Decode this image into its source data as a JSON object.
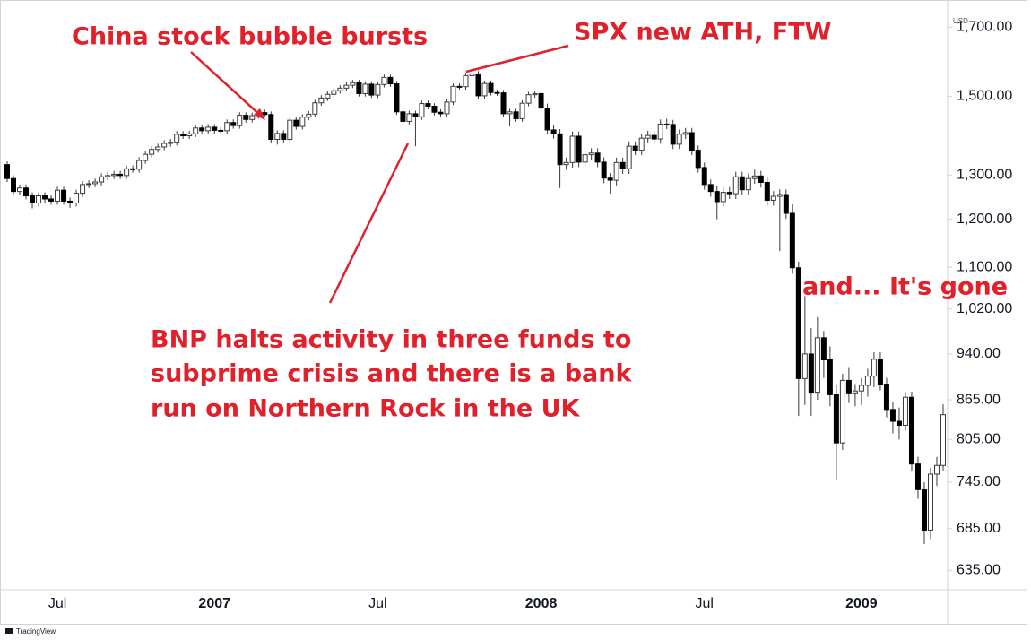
{
  "chart_data": {
    "type": "candlestick",
    "currency": "USD",
    "watermark": "TradingView",
    "log_scale": true,
    "up_color": "#ffffff",
    "down_color": "#000000",
    "outline_color": "#3a3a3a",
    "annotations": [
      "China stock bubble bursts",
      "SPX new ATH, FTW",
      [
        "BNP halts activity in three funds to",
        "subprime crisis and there is a bank",
        "run on Northern Rock in the UK"
      ],
      "and... It's gone"
    ],
    "annotation_color": "#e0202a",
    "categories": [
      null,
      null,
      null,
      null,
      null,
      null,
      null,
      null,
      "Jul",
      null,
      null,
      null,
      null,
      null,
      null,
      null,
      null,
      null,
      null,
      null,
      null,
      null,
      null,
      null,
      null,
      null,
      null,
      null,
      null,
      null,
      null,
      null,
      null,
      "2007",
      null,
      null,
      null,
      null,
      null,
      null,
      null,
      null,
      null,
      null,
      null,
      null,
      null,
      null,
      null,
      null,
      null,
      null,
      null,
      null,
      null,
      null,
      null,
      null,
      null,
      "Jul",
      null,
      null,
      null,
      null,
      null,
      null,
      null,
      null,
      null,
      null,
      null,
      null,
      null,
      null,
      null,
      null,
      null,
      null,
      null,
      null,
      null,
      null,
      null,
      null,
      null,
      "2008",
      null,
      null,
      null,
      null,
      null,
      null,
      null,
      null,
      null,
      null,
      null,
      null,
      null,
      null,
      null,
      null,
      null,
      null,
      null,
      null,
      null,
      null,
      null,
      null,
      null,
      "Jul",
      null,
      null,
      null,
      null,
      null,
      null,
      null,
      null,
      null,
      null,
      null,
      null,
      null,
      null,
      null,
      null,
      null,
      null,
      null,
      null,
      null,
      null,
      null,
      null,
      "2009",
      null,
      null,
      null,
      null,
      null,
      null,
      null,
      null,
      null,
      null,
      null,
      null,
      null
    ],
    "open": [
      1325,
      1292,
      1262,
      1270,
      1252,
      1236,
      1252,
      1245,
      1240,
      1265,
      1240,
      1236,
      1258,
      1278,
      1280,
      1284,
      1296,
      1299,
      1302,
      1299,
      1315,
      1314,
      1335,
      1350,
      1362,
      1368,
      1377,
      1380,
      1400,
      1396,
      1401,
      1416,
      1409,
      1418,
      1410,
      1409,
      1430,
      1422,
      1449,
      1438,
      1448,
      1456,
      1451,
      1387,
      1402,
      1387,
      1436,
      1420,
      1444,
      1452,
      1482,
      1495,
      1505,
      1515,
      1522,
      1530,
      1537,
      1507,
      1533,
      1503,
      1532,
      1552,
      1534,
      1458,
      1433,
      1453,
      1445,
      1480,
      1473,
      1457,
      1453,
      1484,
      1527,
      1526,
      1557,
      1562,
      1501,
      1535,
      1510,
      1509,
      1453,
      1458,
      1440,
      1481,
      1504,
      1507,
      1468,
      1411,
      1401,
      1325,
      1330,
      1395,
      1331,
      1349,
      1353,
      1331,
      1293,
      1288,
      1330,
      1315,
      1370,
      1360,
      1390,
      1397,
      1388,
      1426,
      1425,
      1375,
      1400,
      1404,
      1360,
      1318,
      1278,
      1262,
      1239,
      1260,
      1257,
      1296,
      1266,
      1292,
      1298,
      1283,
      1242,
      1251,
      1255,
      1213,
      1099,
      899,
      940,
      877,
      968,
      930,
      873,
      800,
      896,
      876,
      879,
      888,
      903,
      931,
      890,
      850,
      832,
      826,
      869,
      770,
      735,
      683,
      756,
      768
    ],
    "high": [
      1333,
      1300,
      1278,
      1278,
      1260,
      1260,
      1260,
      1253,
      1273,
      1273,
      1248,
      1266,
      1286,
      1288,
      1292,
      1304,
      1307,
      1310,
      1310,
      1323,
      1323,
      1343,
      1358,
      1370,
      1376,
      1385,
      1388,
      1408,
      1408,
      1409,
      1424,
      1424,
      1426,
      1426,
      1418,
      1438,
      1438,
      1457,
      1457,
      1456,
      1464,
      1464,
      1459,
      1410,
      1410,
      1444,
      1444,
      1452,
      1460,
      1490,
      1503,
      1513,
      1523,
      1530,
      1538,
      1545,
      1545,
      1541,
      1541,
      1540,
      1560,
      1560,
      1542,
      1466,
      1461,
      1461,
      1488,
      1488,
      1481,
      1465,
      1492,
      1535,
      1535,
      1565,
      1576,
      1570,
      1543,
      1543,
      1518,
      1517,
      1466,
      1466,
      1489,
      1512,
      1515,
      1515,
      1480,
      1423,
      1413,
      1342,
      1407,
      1407,
      1361,
      1365,
      1365,
      1343,
      1305,
      1342,
      1342,
      1382,
      1382,
      1402,
      1409,
      1409,
      1438,
      1440,
      1437,
      1412,
      1416,
      1416,
      1372,
      1330,
      1290,
      1274,
      1272,
      1272,
      1308,
      1308,
      1304,
      1313,
      1310,
      1295,
      1263,
      1267,
      1267,
      1233,
      1111,
      1044,
      985,
      1005,
      980,
      953,
      888,
      907,
      918,
      890,
      900,
      915,
      943,
      943,
      900,
      862,
      853,
      877,
      878,
      780,
      745,
      765,
      780,
      858
    ],
    "low": [
      1284,
      1254,
      1254,
      1244,
      1224,
      1228,
      1237,
      1232,
      1232,
      1232,
      1225,
      1228,
      1250,
      1270,
      1272,
      1276,
      1288,
      1291,
      1291,
      1291,
      1306,
      1306,
      1327,
      1342,
      1354,
      1360,
      1369,
      1372,
      1388,
      1388,
      1393,
      1401,
      1401,
      1402,
      1400,
      1401,
      1414,
      1414,
      1430,
      1430,
      1440,
      1443,
      1379,
      1374,
      1379,
      1379,
      1412,
      1412,
      1436,
      1444,
      1474,
      1487,
      1497,
      1507,
      1514,
      1522,
      1499,
      1499,
      1495,
      1495,
      1524,
      1526,
      1450,
      1425,
      1425,
      1370,
      1437,
      1465,
      1449,
      1445,
      1445,
      1476,
      1518,
      1518,
      1549,
      1493,
      1493,
      1502,
      1501,
      1445,
      1420,
      1432,
      1432,
      1473,
      1496,
      1460,
      1399,
      1389,
      1270,
      1313,
      1318,
      1319,
      1319,
      1337,
      1319,
      1281,
      1257,
      1276,
      1303,
      1303,
      1348,
      1348,
      1378,
      1376,
      1376,
      1413,
      1363,
      1363,
      1388,
      1348,
      1306,
      1266,
      1250,
      1200,
      1227,
      1245,
      1245,
      1254,
      1254,
      1280,
      1271,
      1230,
      1230,
      1133,
      1201,
      1087,
      840,
      857,
      840,
      865,
      900,
      855,
      748,
      790,
      860,
      855,
      857,
      870,
      885,
      880,
      838,
      814,
      805,
      818,
      760,
      723,
      666,
      672,
      740,
      760
    ],
    "close": [
      1292,
      1262,
      1270,
      1252,
      1236,
      1252,
      1245,
      1240,
      1265,
      1240,
      1236,
      1258,
      1278,
      1280,
      1284,
      1296,
      1299,
      1302,
      1299,
      1315,
      1314,
      1335,
      1350,
      1362,
      1368,
      1377,
      1380,
      1400,
      1396,
      1401,
      1416,
      1409,
      1418,
      1410,
      1409,
      1430,
      1422,
      1449,
      1438,
      1448,
      1456,
      1451,
      1387,
      1402,
      1387,
      1436,
      1420,
      1444,
      1452,
      1482,
      1495,
      1505,
      1515,
      1522,
      1530,
      1537,
      1507,
      1533,
      1503,
      1532,
      1552,
      1534,
      1458,
      1433,
      1453,
      1445,
      1480,
      1473,
      1457,
      1453,
      1484,
      1527,
      1526,
      1557,
      1562,
      1501,
      1535,
      1510,
      1509,
      1453,
      1458,
      1440,
      1481,
      1504,
      1507,
      1468,
      1411,
      1401,
      1325,
      1330,
      1395,
      1331,
      1349,
      1353,
      1331,
      1293,
      1288,
      1330,
      1315,
      1370,
      1360,
      1390,
      1397,
      1388,
      1426,
      1425,
      1375,
      1400,
      1404,
      1360,
      1318,
      1278,
      1262,
      1239,
      1260,
      1257,
      1296,
      1266,
      1292,
      1298,
      1283,
      1242,
      1251,
      1255,
      1213,
      1099,
      899,
      940,
      877,
      968,
      930,
      873,
      800,
      896,
      876,
      879,
      888,
      903,
      931,
      890,
      850,
      832,
      826,
      869,
      770,
      735,
      683,
      756,
      768,
      842
    ],
    "ylim": [
      613,
      1757
    ],
    "yticks": [
      {
        "value": 635,
        "label": "635.00"
      },
      {
        "value": 685,
        "label": "685.00"
      },
      {
        "value": 745,
        "label": "745.00"
      },
      {
        "value": 805,
        "label": "805.00"
      },
      {
        "value": 865,
        "label": "865.00"
      },
      {
        "value": 940,
        "label": "940.00"
      },
      {
        "value": 1020,
        "label": "1,020.00"
      },
      {
        "value": 1100,
        "label": "1,100.00"
      },
      {
        "value": 1200,
        "label": "1,200.00"
      },
      {
        "value": 1300,
        "label": "1,300.00"
      },
      {
        "value": 1500,
        "label": "1,500.00"
      },
      {
        "value": 1700,
        "label": "1,700.00"
      }
    ]
  }
}
